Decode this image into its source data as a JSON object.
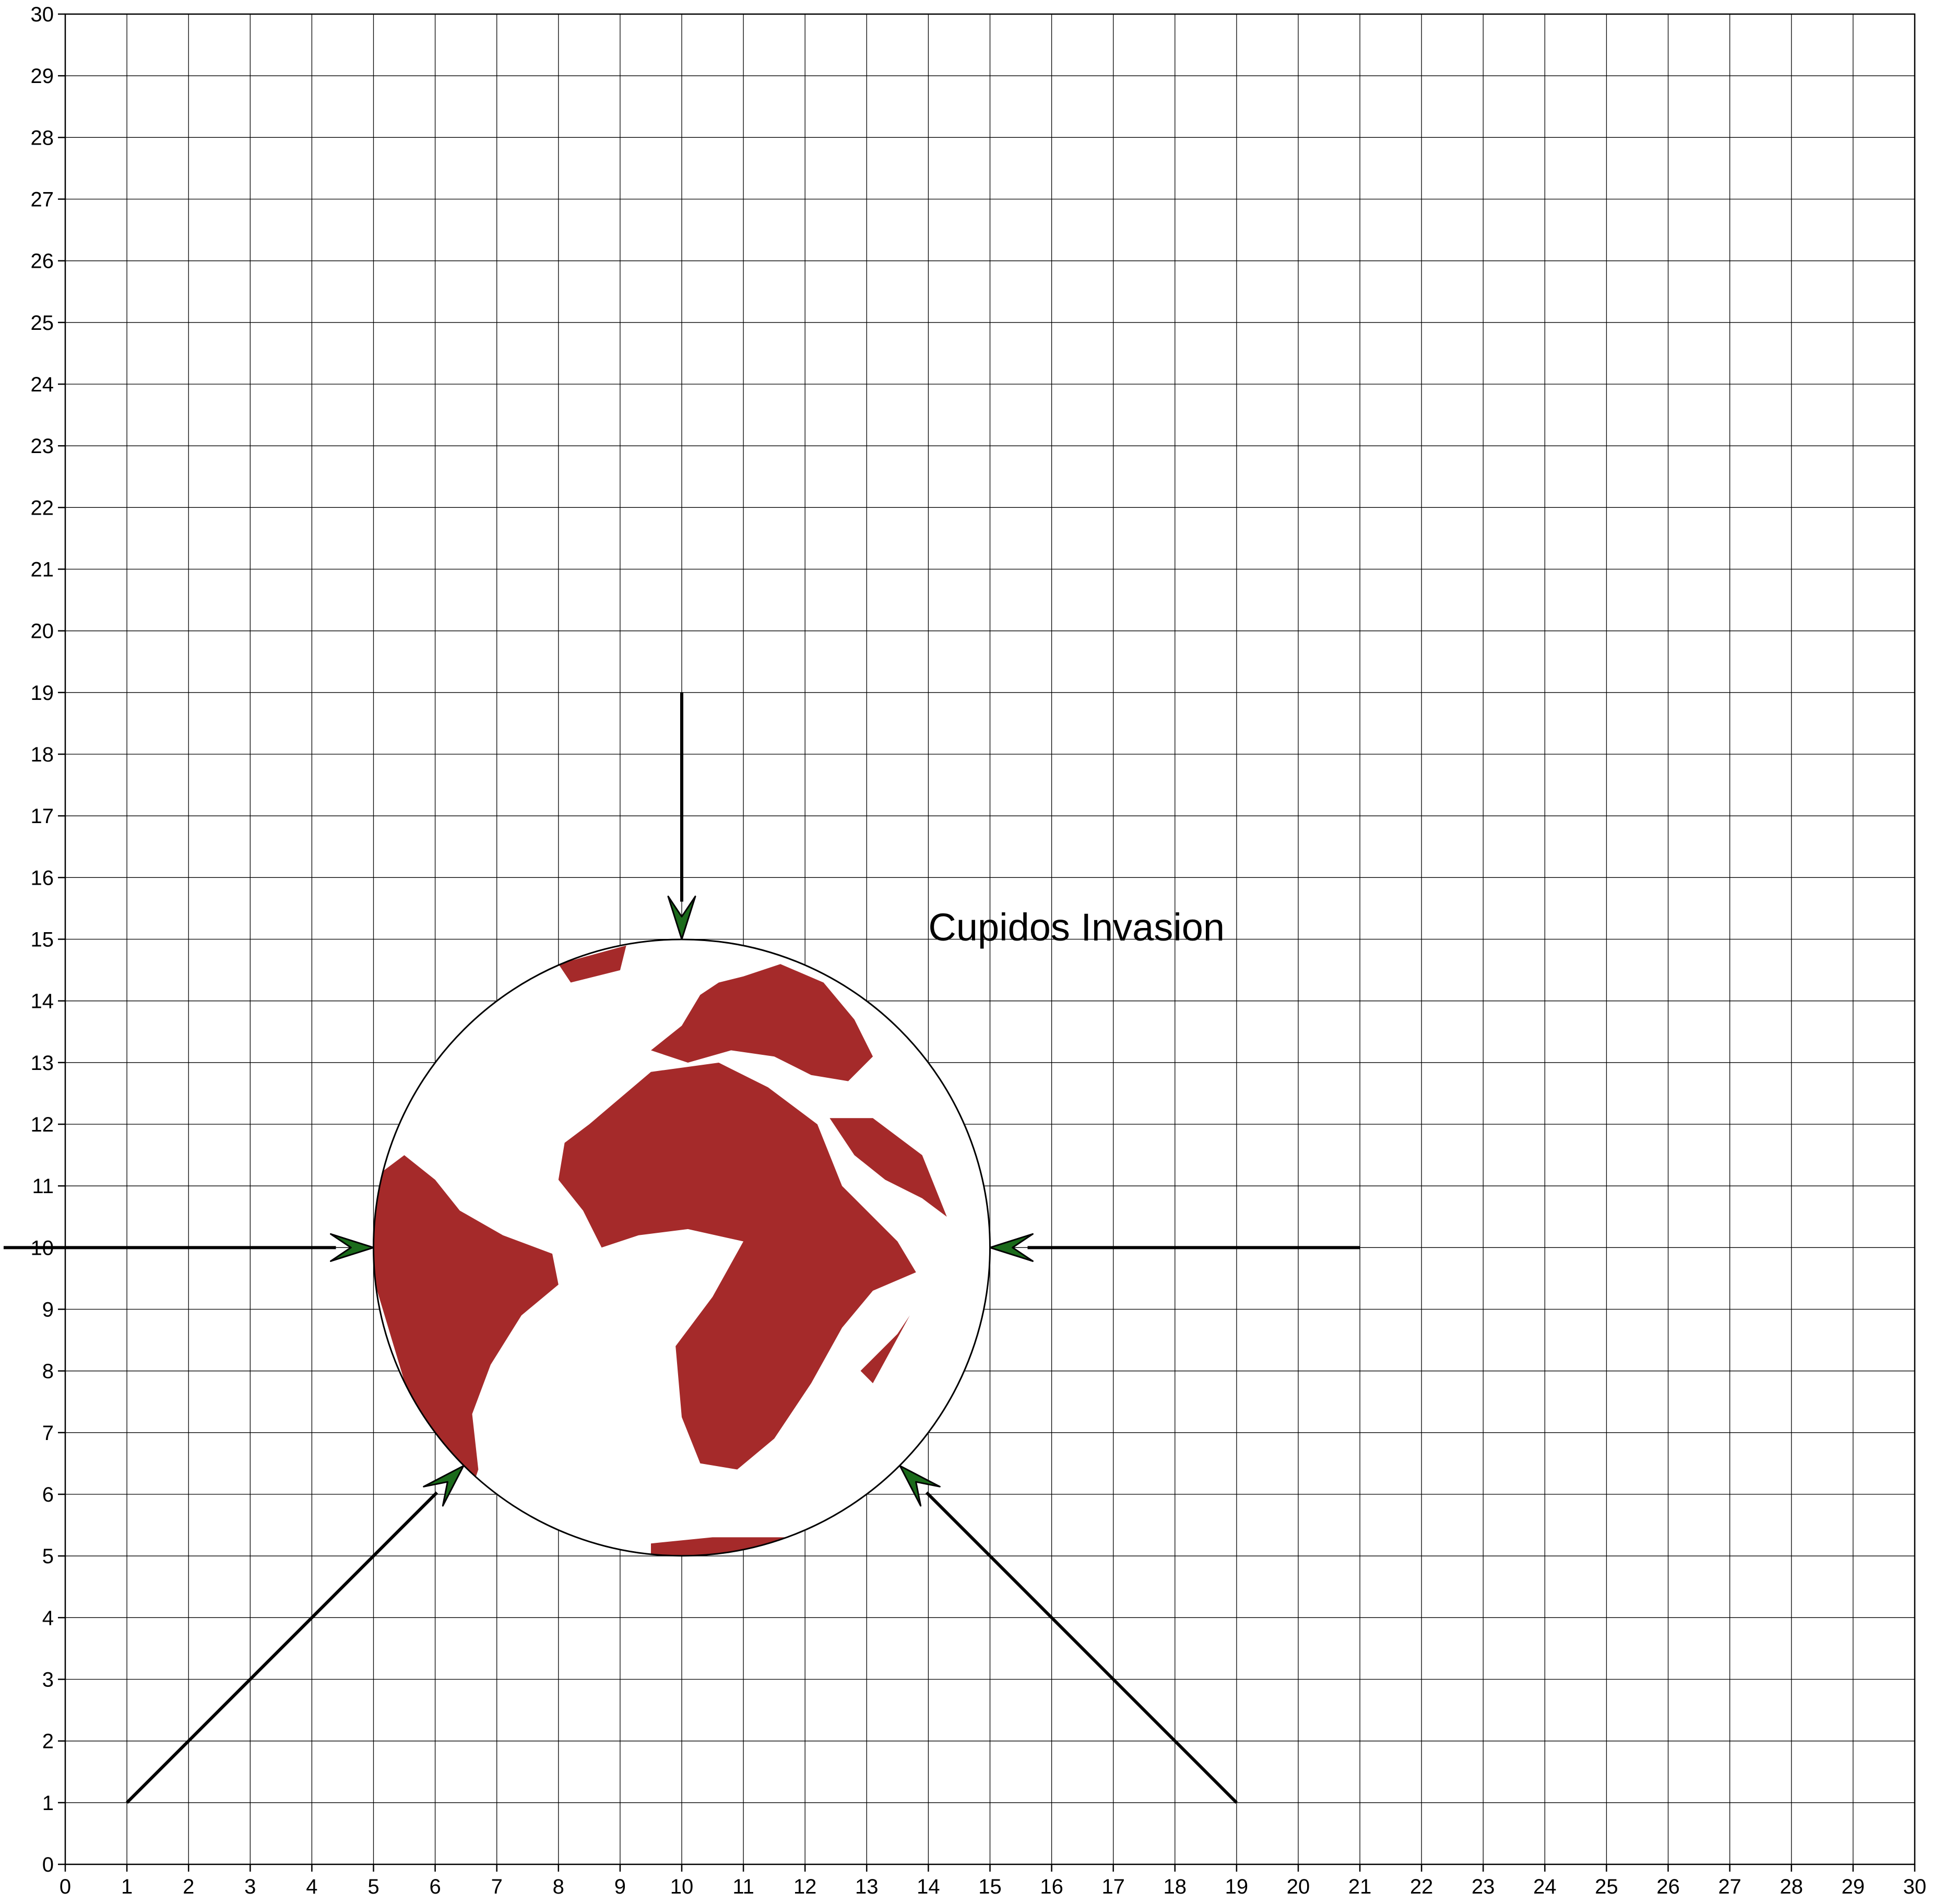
{
  "chart_data": {
    "type": "diagram",
    "title": "Cupidos Invasion",
    "xlabel": "",
    "ylabel": "",
    "xlim": [
      0,
      30
    ],
    "ylim": [
      0,
      30
    ],
    "grid": true,
    "x_ticks": [
      "0",
      "1",
      "2",
      "3",
      "4",
      "5",
      "6",
      "7",
      "8",
      "9",
      "10",
      "11",
      "12",
      "13",
      "14",
      "15",
      "16",
      "17",
      "18",
      "19",
      "20",
      "21",
      "22",
      "23",
      "24",
      "25",
      "26",
      "27",
      "28",
      "29",
      "30"
    ],
    "y_ticks": [
      "0",
      "1",
      "2",
      "3",
      "4",
      "5",
      "6",
      "7",
      "8",
      "9",
      "10",
      "11",
      "12",
      "13",
      "14",
      "15",
      "16",
      "17",
      "18",
      "19",
      "20",
      "21",
      "22",
      "23",
      "24",
      "25",
      "26",
      "27",
      "28",
      "29",
      "30"
    ],
    "annotation": {
      "text": "Cupidos Invasion",
      "x": 14,
      "y": 15.2
    },
    "globe": {
      "center": [
        10,
        10
      ],
      "radius": 5,
      "land_color": "#a52a2a",
      "outline_color": "#000000"
    },
    "arrows": [
      {
        "name": "arrow-top",
        "from": [
          10,
          19
        ],
        "to": [
          10,
          15
        ]
      },
      {
        "name": "arrow-left",
        "from": [
          -1,
          10
        ],
        "to": [
          5,
          10
        ]
      },
      {
        "name": "arrow-right",
        "from": [
          21,
          10
        ],
        "to": [
          15,
          10
        ]
      },
      {
        "name": "arrow-lower-left",
        "from": [
          1,
          1
        ],
        "to": [
          6.46,
          6.46
        ]
      },
      {
        "name": "arrow-lower-right",
        "from": [
          19,
          1
        ],
        "to": [
          13.54,
          6.46
        ]
      }
    ],
    "arrowhead_color": "#1b6b1b",
    "shaft_color": "#000000"
  }
}
